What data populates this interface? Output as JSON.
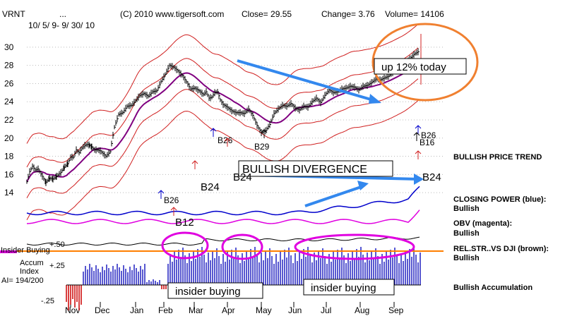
{
  "chart_data": {
    "type": "line",
    "header": {
      "ticker": "VRNT",
      "dots": "...",
      "date_range": "10/ 5/ 9- 9/ 30/ 10",
      "source": "(C) 2010 www.tigersoft.com",
      "close": "Close=  29.55",
      "change": "Change= 3.76",
      "volume": "Volume= 14106"
    },
    "x_labels": [
      "Nov",
      "Dec",
      "Jan",
      "Feb",
      "Mar",
      "Apr",
      "May",
      "Jun",
      "Jul",
      "Aug",
      "Sep"
    ],
    "y_ticks": [
      30,
      28,
      26,
      24,
      22,
      20,
      18,
      16,
      14
    ],
    "ylim": [
      13,
      31
    ],
    "price": {
      "x": [
        0,
        4,
        8,
        12,
        16,
        22,
        27,
        32,
        37,
        42,
        48,
        53,
        58,
        62,
        66,
        70,
        74,
        78,
        82,
        86,
        89,
        92,
        96,
        100,
        104,
        108,
        112,
        118,
        124,
        130,
        136,
        142,
        148,
        154,
        160,
        166,
        172,
        178,
        184,
        190,
        196,
        202,
        208,
        214,
        220,
        226,
        232,
        238,
        244,
        250,
        254,
        258,
        262,
        266,
        270,
        274,
        278,
        284,
        290,
        296,
        302,
        308,
        314,
        320,
        326,
        332,
        338,
        344,
        350,
        356,
        362,
        368,
        374,
        380,
        386,
        392,
        398,
        404,
        410,
        416,
        422,
        428,
        434,
        440,
        446,
        452,
        458,
        464,
        470,
        476,
        482,
        488,
        494,
        500,
        506,
        512,
        518,
        524,
        530,
        536,
        542,
        548,
        554
      ],
      "y": [
        15.2,
        16.3,
        16.9,
        16.5,
        16.6,
        15.8,
        15.1,
        15.6,
        15.5,
        15.8,
        16.2,
        16.8,
        17.2,
        17.9,
        17.9,
        18.7,
        18.4,
        18.9,
        19.2,
        19.3,
        19.2,
        19.0,
        18.7,
        18.7,
        18.6,
        18.3,
        18.0,
        18.5,
        21.2,
        22.6,
        22.8,
        23.5,
        23.6,
        24.1,
        24.7,
        24.9,
        24.6,
        25.1,
        25.2,
        26.2,
        27.0,
        28.0,
        27.8,
        27.4,
        26.9,
        26.2,
        25.4,
        25.5,
        25.2,
        24.8,
        25.1,
        24.4,
        24.5,
        25.0,
        25.1,
        24.2,
        23.7,
        23.4,
        23.0,
        22.8,
        22.8,
        22.7,
        23.2,
        22.5,
        21.4,
        20.6,
        20.8,
        21.5,
        22.7,
        23.2,
        23.6,
        23.5,
        23.8,
        23.3,
        23.1,
        23.5,
        23.4,
        24.0,
        24.4,
        23.9,
        24.7,
        25.3,
        25.0,
        25.1,
        25.4,
        25.5,
        25.7,
        25.6,
        25.3,
        25.7,
        25.8,
        26.1,
        26.5,
        26.4,
        26.6,
        26.8,
        27.2,
        27.5,
        27.9,
        28.3,
        28.7,
        29.2,
        29.5
      ]
    },
    "signals": [
      {
        "label": "B26",
        "kind": "up-arrow-label"
      },
      {
        "label": "B29",
        "kind": "up-arrow-label"
      },
      {
        "label": "B26",
        "kind": "up-arrow-label"
      },
      {
        "label": "B16",
        "kind": "up-arrow-label"
      },
      {
        "label": "B24",
        "kind": "label"
      },
      {
        "label": "B24",
        "kind": "label"
      },
      {
        "label": "B24",
        "kind": "label"
      },
      {
        "label": "B12",
        "kind": "label"
      }
    ],
    "annotations": {
      "callout": "up 12% today",
      "divergence": "BULLISH DIVERGENCE",
      "insider_label_1": "insider buying",
      "insider_label_2": "insider buying"
    },
    "indicator": {
      "ticks": [
        "+.50",
        "+.25",
        "-.25"
      ],
      "left_labels": [
        "Insider Buying",
        "Accum",
        "Index",
        "AI= 194/200"
      ]
    },
    "legend": {
      "trend": "BULLISH PRICE TREND",
      "cp": "CLOSING POWER (blue):",
      "cp_v": "Bullish",
      "obv": "OBV (magenta):",
      "obv_v": "Bullish",
      "rel": "REL.STR..VS DJI (brown):",
      "rel_v": "Bullish",
      "accum": "Bullish Accumulation"
    },
    "colors": {
      "price": "#000000",
      "upper_band": "#d02020",
      "ma": "#800080",
      "closing_power": "#0000cc",
      "obv": "#e000e0",
      "rel_str": "#000000",
      "accum_pos": "#2020c0",
      "accum_neg": "#cc0000",
      "trend_arrow": "#3388ee",
      "callout": "#f08030",
      "insider_line": "#ff7f00"
    }
  }
}
